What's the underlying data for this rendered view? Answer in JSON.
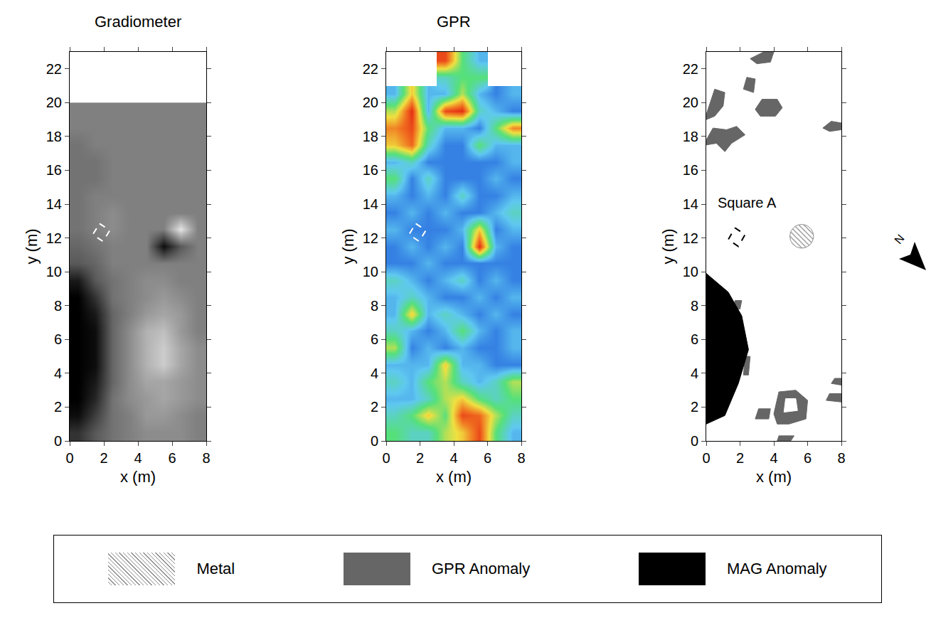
{
  "chart_data": [
    {
      "type": "heatmap",
      "title": "Gradiometer",
      "x_label": "x (m)",
      "y_label": "y (m)",
      "xlim": [
        0,
        8
      ],
      "ylim": [
        0,
        23
      ],
      "xticks": [
        0,
        2,
        4,
        6,
        8
      ],
      "yticks": [
        0,
        2,
        4,
        6,
        8,
        10,
        12,
        14,
        16,
        18,
        20,
        22
      ],
      "colors": [
        "#000000",
        "#ffffff"
      ],
      "zlim": [
        -10,
        10
      ],
      "x": [
        0.5,
        1.5,
        2.5,
        3.5,
        4.5,
        5.5,
        6.5,
        7.5
      ],
      "y": [
        0.5,
        1.5,
        2.5,
        3.5,
        4.5,
        5.5,
        6.5,
        7.5,
        8.5,
        9.5,
        10.5,
        11.5,
        12.5,
        13.5,
        14.5,
        15.5,
        16.5,
        17.5,
        18.5,
        19.5
      ],
      "z": [
        [
          -6,
          -3,
          -1,
          0,
          1,
          1,
          1,
          0
        ],
        [
          -9,
          -5,
          -1,
          0,
          2,
          2,
          1,
          0
        ],
        [
          -10,
          -7,
          -1,
          1,
          2,
          3,
          2,
          1
        ],
        [
          -10,
          -8,
          -2,
          1,
          3,
          3,
          2,
          1
        ],
        [
          -10,
          -9,
          -2,
          1,
          4,
          6,
          3,
          1
        ],
        [
          -10,
          -9,
          -2,
          1,
          4,
          6,
          3,
          1
        ],
        [
          -10,
          -9,
          -2,
          1,
          4,
          5,
          2,
          0
        ],
        [
          -10,
          -8,
          -2,
          0,
          2,
          3,
          2,
          0
        ],
        [
          -10,
          -6,
          -1,
          0,
          1,
          2,
          1,
          0
        ],
        [
          -8,
          -3,
          -1,
          0,
          1,
          1,
          0,
          0
        ],
        [
          -3,
          -2,
          0,
          0,
          0,
          0,
          0,
          0
        ],
        [
          -2,
          -1,
          0,
          0,
          0,
          -9,
          -3,
          0
        ],
        [
          -1,
          0,
          1,
          0,
          0,
          0,
          8,
          0
        ],
        [
          -1,
          0,
          1,
          0,
          0,
          0,
          0,
          0
        ],
        [
          -1,
          0,
          0,
          0,
          0,
          0,
          0,
          0
        ],
        [
          -1,
          -1,
          0,
          0,
          0,
          0,
          0,
          0
        ],
        [
          -1,
          -1,
          0,
          0,
          0,
          0,
          0,
          0
        ],
        [
          -1,
          0,
          0,
          0,
          0,
          0,
          0,
          0
        ],
        [
          0,
          0,
          0,
          0,
          0,
          0,
          0,
          0
        ],
        [
          0,
          0,
          0,
          0,
          0,
          0,
          0,
          0
        ]
      ],
      "square": {
        "corners": [
          [
            1.75,
            12.85
          ],
          [
            2.35,
            12.45
          ],
          [
            1.95,
            11.8
          ],
          [
            1.35,
            12.2
          ]
        ],
        "color": "#ffffff"
      }
    },
    {
      "type": "heatmap",
      "title": "GPR",
      "x_label": "x (m)",
      "y_label": "y (m)",
      "xlim": [
        0,
        8
      ],
      "ylim": [
        0,
        23
      ],
      "xticks": [
        0,
        2,
        4,
        6,
        8
      ],
      "yticks": [
        0,
        2,
        4,
        6,
        8,
        10,
        12,
        14,
        16,
        18,
        20,
        22
      ],
      "colors": [
        "#1434c4",
        "#2a6fe0",
        "#5fc8f0",
        "#56e07a",
        "#f0e040",
        "#f07020",
        "#e01010"
      ],
      "zlim": [
        0,
        1
      ],
      "x": [
        0.5,
        1.5,
        2.5,
        3.5,
        4.5,
        5.5,
        6.5,
        7.5
      ],
      "y": [
        0.5,
        1.5,
        2.5,
        3.5,
        4.5,
        5.5,
        6.5,
        7.5,
        8.5,
        9.5,
        10.5,
        11.5,
        12.5,
        13.5,
        14.5,
        15.5,
        16.5,
        17.5,
        18.5,
        19.5,
        20.5,
        21.5,
        22.5
      ],
      "z": [
        [
          0.5,
          0.4,
          0.4,
          0.6,
          0.7,
          0.9,
          0.5,
          0.3
        ],
        [
          0.4,
          0.5,
          0.7,
          0.5,
          0.9,
          0.85,
          0.6,
          0.4
        ],
        [
          0.3,
          0.3,
          0.4,
          0.6,
          0.7,
          0.5,
          0.4,
          0.5
        ],
        [
          0.4,
          0.3,
          0.5,
          0.6,
          0.4,
          0.3,
          0.4,
          0.6
        ],
        [
          0.3,
          0.3,
          0.3,
          0.7,
          0.3,
          0.3,
          0.2,
          0.2
        ],
        [
          0.6,
          0.2,
          0.3,
          0.2,
          0.3,
          0.2,
          0.2,
          0.3
        ],
        [
          0.4,
          0.3,
          0.2,
          0.3,
          0.5,
          0.3,
          0.2,
          0.3
        ],
        [
          0.3,
          0.7,
          0.3,
          0.4,
          0.3,
          0.2,
          0.3,
          0.2
        ],
        [
          0.3,
          0.4,
          0.3,
          0.2,
          0.2,
          0.3,
          0.2,
          0.3
        ],
        [
          0.4,
          0.3,
          0.2,
          0.3,
          0.4,
          0.2,
          0.3,
          0.2
        ],
        [
          0.2,
          0.2,
          0.3,
          0.2,
          0.2,
          0.2,
          0.2,
          0.2
        ],
        [
          0.2,
          0.3,
          0.2,
          0.3,
          0.2,
          0.95,
          0.3,
          0.2
        ],
        [
          0.3,
          0.2,
          0.2,
          0.2,
          0.3,
          0.7,
          0.2,
          0.3
        ],
        [
          0.2,
          0.3,
          0.2,
          0.3,
          0.2,
          0.2,
          0.3,
          0.4
        ],
        [
          0.3,
          0.2,
          0.3,
          0.2,
          0.4,
          0.2,
          0.2,
          0.3
        ],
        [
          0.5,
          0.2,
          0.4,
          0.2,
          0.2,
          0.2,
          0.3,
          0.2
        ],
        [
          0.3,
          0.4,
          0.2,
          0.2,
          0.2,
          0.2,
          0.2,
          0.3
        ],
        [
          0.7,
          0.85,
          0.4,
          0.2,
          0.2,
          0.5,
          0.3,
          0.3
        ],
        [
          0.8,
          0.9,
          0.5,
          0.3,
          0.3,
          0.2,
          0.5,
          0.8
        ],
        [
          0.6,
          0.95,
          0.3,
          0.9,
          0.95,
          0.4,
          0.3,
          0.2
        ],
        [
          0.3,
          0.7,
          0.3,
          0.3,
          0.6,
          0.3,
          0.2,
          0.3
        ],
        [
          null,
          null,
          null,
          0.4,
          0.5,
          0.5,
          null,
          null
        ],
        [
          null,
          null,
          null,
          0.9,
          0.5,
          0.3,
          null,
          null
        ]
      ],
      "square": {
        "corners": [
          [
            1.75,
            12.85
          ],
          [
            2.35,
            12.45
          ],
          [
            1.95,
            11.8
          ],
          [
            1.35,
            12.2
          ]
        ],
        "color": "#ffffff"
      }
    },
    {
      "type": "map",
      "x_label": "x (m)",
      "y_label": "y (m)",
      "xlim": [
        0,
        8
      ],
      "ylim": [
        0,
        23
      ],
      "xticks": [
        0,
        2,
        4,
        6,
        8
      ],
      "yticks": [
        0,
        2,
        4,
        6,
        8,
        10,
        12,
        14,
        16,
        18,
        20,
        22
      ],
      "legend": "bottom",
      "north_label": "N",
      "anomalies": [
        {
          "name": "Metal",
          "color": "#8c8c8c",
          "marker": "hatched",
          "circles": [
            {
              "center": [
                5.65,
                12.1
              ],
              "radius": 0.7
            }
          ]
        },
        {
          "name": "GPR Anomaly",
          "color": "#666666",
          "polygons": [
            [
              [
                0,
                19.0
              ],
              [
                0,
                19.3
              ],
              [
                0.5,
                20.8
              ],
              [
                1.1,
                20.6
              ],
              [
                1.0,
                19.8
              ],
              [
                0.5,
                19.2
              ]
            ],
            [
              [
                2.6,
                22.6
              ],
              [
                3.4,
                23
              ],
              [
                4.0,
                23
              ],
              [
                3.8,
                22.4
              ],
              [
                3.0,
                22.3
              ]
            ],
            [
              [
                2.2,
                20.8
              ],
              [
                2.4,
                21.5
              ],
              [
                2.9,
                21.4
              ],
              [
                2.8,
                20.6
              ]
            ],
            [
              [
                2.9,
                19.6
              ],
              [
                3.3,
                20.2
              ],
              [
                4.2,
                20.2
              ],
              [
                4.5,
                19.7
              ],
              [
                4.1,
                19.2
              ],
              [
                3.2,
                19.2
              ]
            ],
            [
              [
                0,
                17.5
              ],
              [
                0,
                17.8
              ],
              [
                0.4,
                18.5
              ],
              [
                1.2,
                18.4
              ],
              [
                1.8,
                18.6
              ],
              [
                2.3,
                18.1
              ],
              [
                1.5,
                17.6
              ],
              [
                1.1,
                17.1
              ],
              [
                0.6,
                17.6
              ]
            ],
            [
              [
                6.9,
                18.5
              ],
              [
                7.4,
                18.9
              ],
              [
                8,
                18.8
              ],
              [
                8,
                18.4
              ],
              [
                7.3,
                18.3
              ]
            ],
            [
              [
                1.6,
                7.8
              ],
              [
                1.7,
                8.3
              ],
              [
                2.1,
                8.3
              ],
              [
                2.0,
                7.8
              ]
            ],
            [
              [
                2.2,
                3.9
              ],
              [
                2.3,
                5.0
              ],
              [
                2.6,
                5.0
              ],
              [
                2.5,
                3.9
              ]
            ],
            [
              [
                2.9,
                1.3
              ],
              [
                3.1,
                1.9
              ],
              [
                3.8,
                1.9
              ],
              [
                3.7,
                1.3
              ]
            ],
            [
              [
                4.0,
                1.6
              ],
              [
                4.3,
                2.9
              ],
              [
                5.3,
                3.0
              ],
              [
                6.0,
                2.4
              ],
              [
                5.9,
                1.3
              ],
              [
                4.9,
                1.0
              ],
              [
                4.2,
                1.0
              ]
            ],
            [
              [
                7.1,
                2.4
              ],
              [
                7.3,
                2.8
              ],
              [
                8,
                2.8
              ],
              [
                8,
                2.3
              ]
            ],
            [
              [
                7.4,
                3.4
              ],
              [
                7.6,
                3.7
              ],
              [
                8,
                3.7
              ],
              [
                8,
                3.3
              ]
            ],
            [
              [
                4.2,
                0
              ],
              [
                4.3,
                0.3
              ],
              [
                5.2,
                0.3
              ],
              [
                5.0,
                0
              ]
            ]
          ],
          "holes": [
            [
              [
                4.6,
                1.7
              ],
              [
                4.7,
                2.5
              ],
              [
                5.3,
                2.5
              ],
              [
                5.4,
                1.8
              ]
            ]
          ]
        },
        {
          "name": "MAG Anomaly",
          "color": "#000000",
          "polygons": [
            [
              [
                0,
                1
              ],
              [
                1.1,
                1.5
              ],
              [
                1.9,
                3.4
              ],
              [
                2.5,
                5.4
              ],
              [
                2.1,
                7.4
              ],
              [
                1.3,
                8.8
              ],
              [
                0,
                9.9
              ]
            ]
          ]
        }
      ],
      "square": {
        "label": "Square A",
        "label_at": [
          2.4,
          14.1
        ],
        "corners": [
          [
            1.7,
            12.6
          ],
          [
            2.3,
            12.2
          ],
          [
            1.9,
            11.5
          ],
          [
            1.3,
            11.9
          ]
        ],
        "color": "#000000"
      }
    }
  ]
}
